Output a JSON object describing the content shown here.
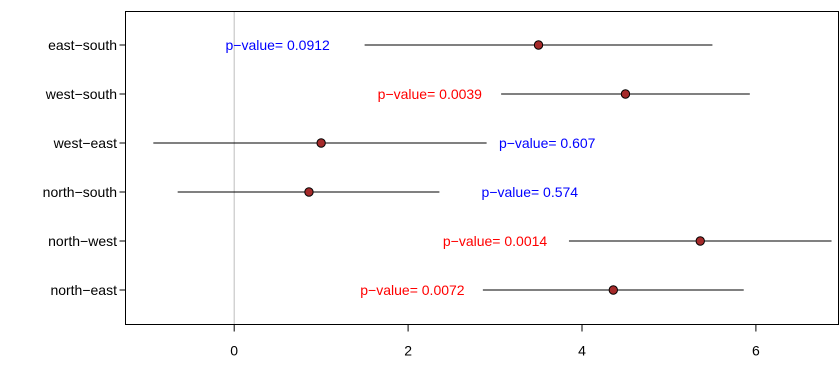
{
  "chart_data": {
    "type": "forest",
    "title": "",
    "xlabel": "",
    "ylabel": "",
    "xlim": [
      -1.25,
      6.95
    ],
    "x_ticks": [
      0,
      2,
      4,
      6
    ],
    "x_tick_labels": [
      "0",
      "2",
      "4",
      "6"
    ],
    "reference_line_x": 0,
    "point_color": "#a52a2a",
    "significant_color": "#ff0000",
    "nonsignificant_color": "#0000ff",
    "rows": [
      {
        "label": "east−south",
        "estimate": 3.5,
        "lower": 1.5,
        "upper": 5.5,
        "pvalue_text": "p−value= 0.0912",
        "significant": false
      },
      {
        "label": "west−south",
        "estimate": 4.5,
        "lower": 3.07,
        "upper": 5.93,
        "pvalue_text": "p−value= 0.0039",
        "significant": true
      },
      {
        "label": "west−east",
        "estimate": 1.0,
        "lower": -0.93,
        "upper": 2.93,
        "pvalue_text": "p−value= 0.607",
        "significant": false
      },
      {
        "label": "north−south",
        "estimate": 0.86,
        "lower": -0.65,
        "upper": 2.36,
        "pvalue_text": "p−value= 0.574",
        "significant": false
      },
      {
        "label": "north−west",
        "estimate": 5.36,
        "lower": 3.85,
        "upper": 6.87,
        "pvalue_text": "p−value= 0.0014",
        "significant": true
      },
      {
        "label": "north−east",
        "estimate": 4.36,
        "lower": 2.86,
        "upper": 5.86,
        "pvalue_text": "p−value= 0.0072",
        "significant": true
      }
    ]
  }
}
